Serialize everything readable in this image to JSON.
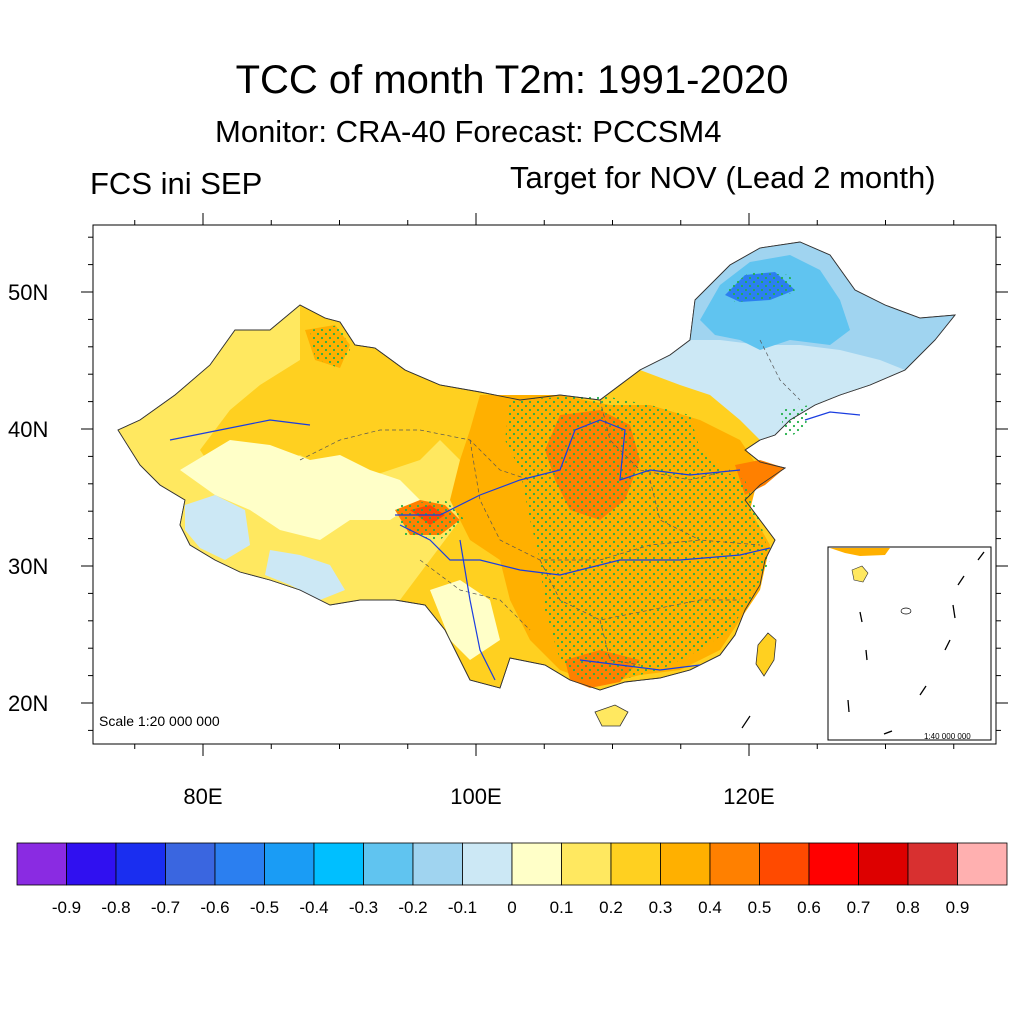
{
  "title": "TCC of month T2m: 1991-2020",
  "subtitle": "Monitor: CRA-40   Forecast: PCCSM4",
  "left_label": "FCS ini SEP",
  "right_label": "Target for NOV (Lead 2 month)",
  "scale_main": "Scale 1:20 000 000",
  "scale_inset": "1:40 000 000",
  "map": {
    "lat_ticks": [
      {
        "value": 50,
        "label": "50N"
      },
      {
        "value": 40,
        "label": "40N"
      },
      {
        "value": 30,
        "label": "30N"
      },
      {
        "value": 20,
        "label": "20N"
      }
    ],
    "lon_ticks": [
      {
        "value": 80,
        "label": "80E"
      },
      {
        "value": 100,
        "label": "100E"
      },
      {
        "value": 120,
        "label": "120E"
      }
    ],
    "lon_range": [
      72,
      138
    ],
    "lat_range": [
      17,
      55
    ]
  },
  "colorbar": {
    "colors": [
      "#8a2be2",
      "#3010f0",
      "#1a2ef0",
      "#3a66e0",
      "#2b7ff0",
      "#1a9cf5",
      "#00bfff",
      "#60c4f0",
      "#a0d4f0",
      "#cce8f5",
      "#ffffc8",
      "#ffe860",
      "#ffd020",
      "#ffb000",
      "#ff8000",
      "#ff4a00",
      "#ff0000",
      "#dd0000",
      "#d83030",
      "#ffb0b0"
    ],
    "labels": [
      "-0.9",
      "-0.8",
      "-0.7",
      "-0.6",
      "-0.5",
      "-0.4",
      "-0.3",
      "-0.2",
      "-0.1",
      "0",
      "0.1",
      "0.2",
      "0.3",
      "0.4",
      "0.5",
      "0.6",
      "0.7",
      "0.8",
      "0.9"
    ]
  }
}
